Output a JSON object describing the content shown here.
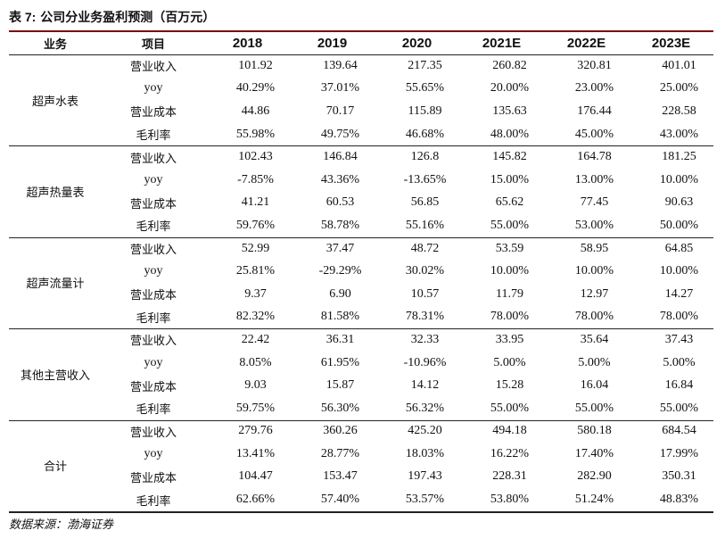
{
  "title": {
    "label": "表 7:",
    "text": "公司分业务盈利预测（百万元）"
  },
  "header": {
    "business": "业务",
    "item": "项目",
    "years": [
      "2018",
      "2019",
      "2020",
      "2021E",
      "2022E",
      "2023E"
    ]
  },
  "groups": [
    {
      "name": "超声水表",
      "rows": [
        {
          "item": "营业收入",
          "values": [
            "101.92",
            "139.64",
            "217.35",
            "260.82",
            "320.81",
            "401.01"
          ]
        },
        {
          "item": "yoy",
          "values": [
            "40.29%",
            "37.01%",
            "55.65%",
            "20.00%",
            "23.00%",
            "25.00%"
          ]
        },
        {
          "item": "营业成本",
          "values": [
            "44.86",
            "70.17",
            "115.89",
            "135.63",
            "176.44",
            "228.58"
          ]
        },
        {
          "item": "毛利率",
          "values": [
            "55.98%",
            "49.75%",
            "46.68%",
            "48.00%",
            "45.00%",
            "43.00%"
          ]
        }
      ]
    },
    {
      "name": "超声热量表",
      "rows": [
        {
          "item": "营业收入",
          "values": [
            "102.43",
            "146.84",
            "126.8",
            "145.82",
            "164.78",
            "181.25"
          ]
        },
        {
          "item": "yoy",
          "values": [
            "-7.85%",
            "43.36%",
            "-13.65%",
            "15.00%",
            "13.00%",
            "10.00%"
          ]
        },
        {
          "item": "营业成本",
          "values": [
            "41.21",
            "60.53",
            "56.85",
            "65.62",
            "77.45",
            "90.63"
          ]
        },
        {
          "item": "毛利率",
          "values": [
            "59.76%",
            "58.78%",
            "55.16%",
            "55.00%",
            "53.00%",
            "50.00%"
          ]
        }
      ]
    },
    {
      "name": "超声流量计",
      "rows": [
        {
          "item": "营业收入",
          "values": [
            "52.99",
            "37.47",
            "48.72",
            "53.59",
            "58.95",
            "64.85"
          ]
        },
        {
          "item": "yoy",
          "values": [
            "25.81%",
            "-29.29%",
            "30.02%",
            "10.00%",
            "10.00%",
            "10.00%"
          ]
        },
        {
          "item": "营业成本",
          "values": [
            "9.37",
            "6.90",
            "10.57",
            "11.79",
            "12.97",
            "14.27"
          ]
        },
        {
          "item": "毛利率",
          "values": [
            "82.32%",
            "81.58%",
            "78.31%",
            "78.00%",
            "78.00%",
            "78.00%"
          ]
        }
      ]
    },
    {
      "name": "其他主营收入",
      "rows": [
        {
          "item": "营业收入",
          "values": [
            "22.42",
            "36.31",
            "32.33",
            "33.95",
            "35.64",
            "37.43"
          ]
        },
        {
          "item": "yoy",
          "values": [
            "8.05%",
            "61.95%",
            "-10.96%",
            "5.00%",
            "5.00%",
            "5.00%"
          ]
        },
        {
          "item": "营业成本",
          "values": [
            "9.03",
            "15.87",
            "14.12",
            "15.28",
            "16.04",
            "16.84"
          ]
        },
        {
          "item": "毛利率",
          "values": [
            "59.75%",
            "56.30%",
            "56.32%",
            "55.00%",
            "55.00%",
            "55.00%"
          ]
        }
      ]
    },
    {
      "name": "合计",
      "rows": [
        {
          "item": "营业收入",
          "values": [
            "279.76",
            "360.26",
            "425.20",
            "494.18",
            "580.18",
            "684.54"
          ]
        },
        {
          "item": "yoy",
          "values": [
            "13.41%",
            "28.77%",
            "18.03%",
            "16.22%",
            "17.40%",
            "17.99%"
          ]
        },
        {
          "item": "营业成本",
          "values": [
            "104.47",
            "153.47",
            "197.43",
            "228.31",
            "282.90",
            "350.31"
          ]
        },
        {
          "item": "毛利率",
          "values": [
            "62.66%",
            "57.40%",
            "53.57%",
            "53.80%",
            "51.24%",
            "48.83%"
          ]
        }
      ]
    }
  ],
  "source": "数据来源：渤海证券",
  "colors": {
    "top_rule": "#7a0c10",
    "rules": "#222222",
    "text": "#111111"
  }
}
